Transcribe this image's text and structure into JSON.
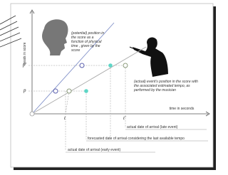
{
  "axes": {
    "y_label": "beats in score",
    "x_label": "time in seconds"
  },
  "symbols": {
    "p": "p",
    "p_prime": "p'",
    "t": "t",
    "t_prime": "t'"
  },
  "annotations": {
    "potential": [
      "(potential) position in",
      "the score as a",
      "function of physical",
      "time , given by the",
      "score"
    ],
    "actual": [
      "(actual) event's position in the score with",
      "the associated estimated tempo, as",
      "performed by the musician"
    ],
    "late": "actual date of arrival (late event)",
    "forecast": "forecasted date of arrival considering the last available tempo",
    "early": "actual date of arrival (early event)"
  }
}
